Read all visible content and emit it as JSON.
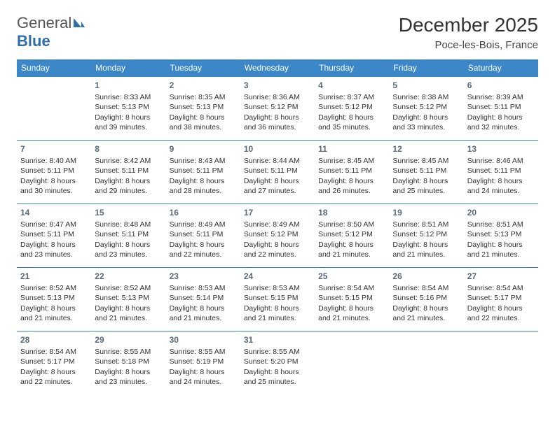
{
  "logo": {
    "text1": "General",
    "text2": "Blue"
  },
  "title": "December 2025",
  "location": "Poce-les-Bois, France",
  "colors": {
    "header_bg": "#3b87c8",
    "header_text": "#ffffff",
    "border": "#3b87c8",
    "text": "#333333",
    "daynum": "#5a6a78",
    "logo_gray": "#555555",
    "logo_blue": "#2f6fa8",
    "background": "#ffffff"
  },
  "typography": {
    "title_fontsize": 28,
    "location_fontsize": 15,
    "header_fontsize": 12,
    "cell_fontsize": 10.5,
    "daynum_fontsize": 12
  },
  "weekdays": [
    "Sunday",
    "Monday",
    "Tuesday",
    "Wednesday",
    "Thursday",
    "Friday",
    "Saturday"
  ],
  "weeks": [
    [
      null,
      {
        "n": "1",
        "sr": "Sunrise: 8:33 AM",
        "ss": "Sunset: 5:13 PM",
        "dl": "Daylight: 8 hours and 39 minutes."
      },
      {
        "n": "2",
        "sr": "Sunrise: 8:35 AM",
        "ss": "Sunset: 5:13 PM",
        "dl": "Daylight: 8 hours and 38 minutes."
      },
      {
        "n": "3",
        "sr": "Sunrise: 8:36 AM",
        "ss": "Sunset: 5:12 PM",
        "dl": "Daylight: 8 hours and 36 minutes."
      },
      {
        "n": "4",
        "sr": "Sunrise: 8:37 AM",
        "ss": "Sunset: 5:12 PM",
        "dl": "Daylight: 8 hours and 35 minutes."
      },
      {
        "n": "5",
        "sr": "Sunrise: 8:38 AM",
        "ss": "Sunset: 5:12 PM",
        "dl": "Daylight: 8 hours and 33 minutes."
      },
      {
        "n": "6",
        "sr": "Sunrise: 8:39 AM",
        "ss": "Sunset: 5:11 PM",
        "dl": "Daylight: 8 hours and 32 minutes."
      }
    ],
    [
      {
        "n": "7",
        "sr": "Sunrise: 8:40 AM",
        "ss": "Sunset: 5:11 PM",
        "dl": "Daylight: 8 hours and 30 minutes."
      },
      {
        "n": "8",
        "sr": "Sunrise: 8:42 AM",
        "ss": "Sunset: 5:11 PM",
        "dl": "Daylight: 8 hours and 29 minutes."
      },
      {
        "n": "9",
        "sr": "Sunrise: 8:43 AM",
        "ss": "Sunset: 5:11 PM",
        "dl": "Daylight: 8 hours and 28 minutes."
      },
      {
        "n": "10",
        "sr": "Sunrise: 8:44 AM",
        "ss": "Sunset: 5:11 PM",
        "dl": "Daylight: 8 hours and 27 minutes."
      },
      {
        "n": "11",
        "sr": "Sunrise: 8:45 AM",
        "ss": "Sunset: 5:11 PM",
        "dl": "Daylight: 8 hours and 26 minutes."
      },
      {
        "n": "12",
        "sr": "Sunrise: 8:45 AM",
        "ss": "Sunset: 5:11 PM",
        "dl": "Daylight: 8 hours and 25 minutes."
      },
      {
        "n": "13",
        "sr": "Sunrise: 8:46 AM",
        "ss": "Sunset: 5:11 PM",
        "dl": "Daylight: 8 hours and 24 minutes."
      }
    ],
    [
      {
        "n": "14",
        "sr": "Sunrise: 8:47 AM",
        "ss": "Sunset: 5:11 PM",
        "dl": "Daylight: 8 hours and 23 minutes."
      },
      {
        "n": "15",
        "sr": "Sunrise: 8:48 AM",
        "ss": "Sunset: 5:11 PM",
        "dl": "Daylight: 8 hours and 23 minutes."
      },
      {
        "n": "16",
        "sr": "Sunrise: 8:49 AM",
        "ss": "Sunset: 5:11 PM",
        "dl": "Daylight: 8 hours and 22 minutes."
      },
      {
        "n": "17",
        "sr": "Sunrise: 8:49 AM",
        "ss": "Sunset: 5:12 PM",
        "dl": "Daylight: 8 hours and 22 minutes."
      },
      {
        "n": "18",
        "sr": "Sunrise: 8:50 AM",
        "ss": "Sunset: 5:12 PM",
        "dl": "Daylight: 8 hours and 21 minutes."
      },
      {
        "n": "19",
        "sr": "Sunrise: 8:51 AM",
        "ss": "Sunset: 5:12 PM",
        "dl": "Daylight: 8 hours and 21 minutes."
      },
      {
        "n": "20",
        "sr": "Sunrise: 8:51 AM",
        "ss": "Sunset: 5:13 PM",
        "dl": "Daylight: 8 hours and 21 minutes."
      }
    ],
    [
      {
        "n": "21",
        "sr": "Sunrise: 8:52 AM",
        "ss": "Sunset: 5:13 PM",
        "dl": "Daylight: 8 hours and 21 minutes."
      },
      {
        "n": "22",
        "sr": "Sunrise: 8:52 AM",
        "ss": "Sunset: 5:13 PM",
        "dl": "Daylight: 8 hours and 21 minutes."
      },
      {
        "n": "23",
        "sr": "Sunrise: 8:53 AM",
        "ss": "Sunset: 5:14 PM",
        "dl": "Daylight: 8 hours and 21 minutes."
      },
      {
        "n": "24",
        "sr": "Sunrise: 8:53 AM",
        "ss": "Sunset: 5:15 PM",
        "dl": "Daylight: 8 hours and 21 minutes."
      },
      {
        "n": "25",
        "sr": "Sunrise: 8:54 AM",
        "ss": "Sunset: 5:15 PM",
        "dl": "Daylight: 8 hours and 21 minutes."
      },
      {
        "n": "26",
        "sr": "Sunrise: 8:54 AM",
        "ss": "Sunset: 5:16 PM",
        "dl": "Daylight: 8 hours and 21 minutes."
      },
      {
        "n": "27",
        "sr": "Sunrise: 8:54 AM",
        "ss": "Sunset: 5:17 PM",
        "dl": "Daylight: 8 hours and 22 minutes."
      }
    ],
    [
      {
        "n": "28",
        "sr": "Sunrise: 8:54 AM",
        "ss": "Sunset: 5:17 PM",
        "dl": "Daylight: 8 hours and 22 minutes."
      },
      {
        "n": "29",
        "sr": "Sunrise: 8:55 AM",
        "ss": "Sunset: 5:18 PM",
        "dl": "Daylight: 8 hours and 23 minutes."
      },
      {
        "n": "30",
        "sr": "Sunrise: 8:55 AM",
        "ss": "Sunset: 5:19 PM",
        "dl": "Daylight: 8 hours and 24 minutes."
      },
      {
        "n": "31",
        "sr": "Sunrise: 8:55 AM",
        "ss": "Sunset: 5:20 PM",
        "dl": "Daylight: 8 hours and 25 minutes."
      },
      null,
      null,
      null
    ]
  ]
}
